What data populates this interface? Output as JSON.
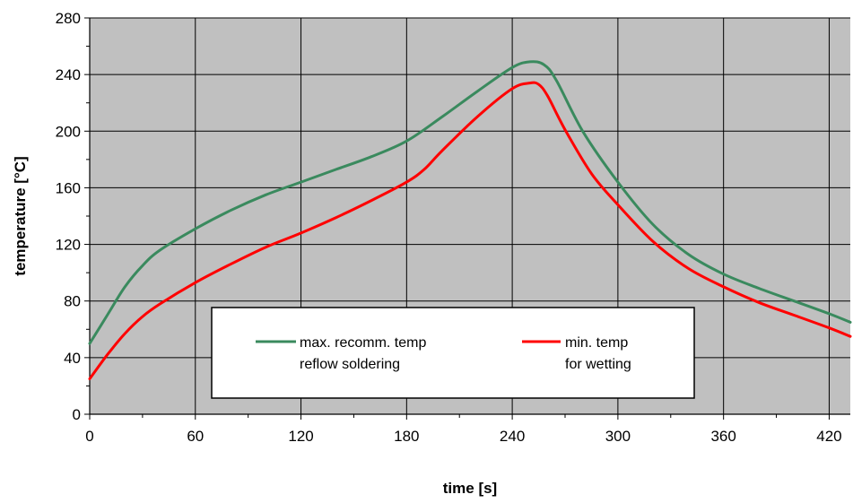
{
  "chart_data": {
    "type": "line",
    "title": "",
    "xlabel": "time [s]",
    "ylabel": "temperature [°C]",
    "xlim": [
      0,
      432
    ],
    "ylim": [
      0,
      280
    ],
    "x_ticks": [
      0,
      60,
      120,
      180,
      240,
      300,
      360,
      420
    ],
    "y_ticks": [
      0,
      40,
      80,
      120,
      160,
      200,
      240,
      280
    ],
    "grid": true,
    "legend_position": "bottom-center",
    "colors": {
      "plot_background": "#c0c0c0",
      "grid": "#000000",
      "max_series": "#3a8a5e",
      "min_series": "#ff0000"
    },
    "series": [
      {
        "name_line1": "max. recomm. temp",
        "name_line2": "reflow soldering",
        "color": "#3a8a5e",
        "x": [
          0,
          10,
          20,
          30,
          40,
          60,
          80,
          100,
          120,
          140,
          160,
          180,
          200,
          220,
          240,
          250,
          258,
          265,
          280,
          300,
          320,
          340,
          360,
          380,
          400,
          420,
          432
        ],
        "y": [
          50,
          70,
          90,
          105,
          116,
          131,
          144,
          155,
          164,
          173,
          182,
          193,
          210,
          228,
          245,
          249,
          247,
          236,
          200,
          164,
          134,
          113,
          99,
          89,
          80,
          71,
          65
        ]
      },
      {
        "name_line1": "min. temp",
        "name_line2": "for wetting",
        "color": "#ff0000",
        "x": [
          0,
          10,
          20,
          30,
          40,
          60,
          80,
          100,
          120,
          140,
          160,
          180,
          190,
          200,
          220,
          240,
          250,
          255,
          260,
          270,
          285,
          300,
          320,
          340,
          360,
          380,
          400,
          420,
          432
        ],
        "y": [
          25,
          42,
          57,
          69,
          78,
          93,
          106,
          118,
          128,
          139,
          151,
          164,
          173,
          186,
          210,
          230,
          234,
          233,
          225,
          201,
          170,
          148,
          122,
          103,
          90,
          79,
          70,
          61,
          55
        ]
      }
    ]
  }
}
